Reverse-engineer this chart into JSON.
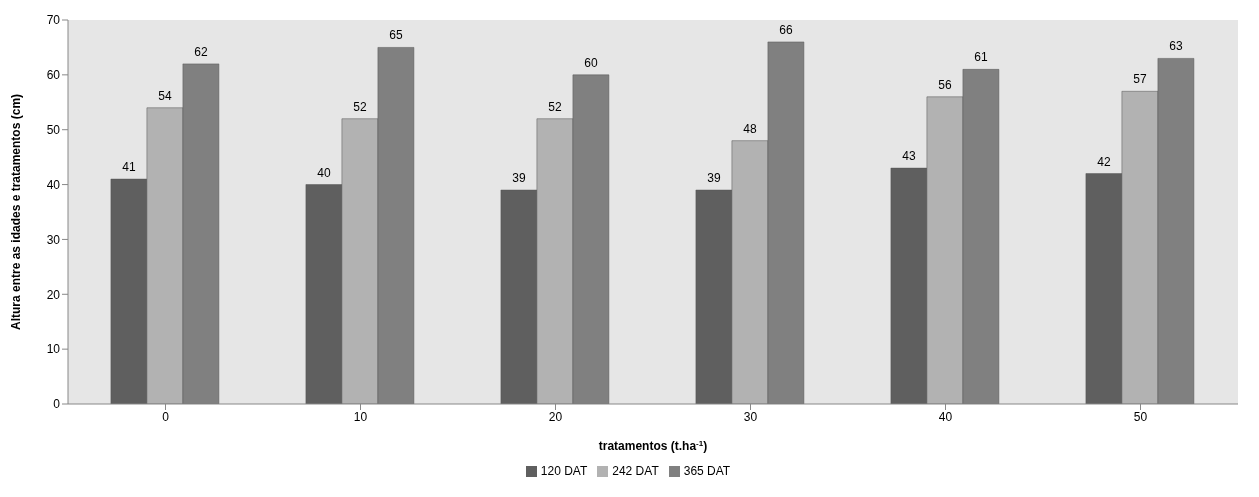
{
  "chart_data": {
    "type": "bar",
    "xlabel": "tratamentos (t.ha$^{-1}$)",
    "ylabel": "Altura entre as idades e tratamentos (cm)",
    "categories": [
      "0",
      "10",
      "20",
      "30",
      "40",
      "50"
    ],
    "series": [
      {
        "name": "120 DAT",
        "color": "#5f5f5f",
        "values": [
          41,
          40,
          39,
          39,
          43,
          42
        ]
      },
      {
        "name": "242 DAT",
        "color": "#b2b2b2",
        "values": [
          54,
          52,
          52,
          48,
          56,
          57
        ]
      },
      {
        "name": "365 DAT",
        "color": "#808080",
        "values": [
          62,
          65,
          60,
          66,
          61,
          63
        ]
      }
    ],
    "ylim": [
      0,
      70
    ],
    "yticks": [
      0,
      10,
      20,
      30,
      40,
      50,
      60,
      70
    ],
    "data_labels": true,
    "legend": "bottom"
  }
}
